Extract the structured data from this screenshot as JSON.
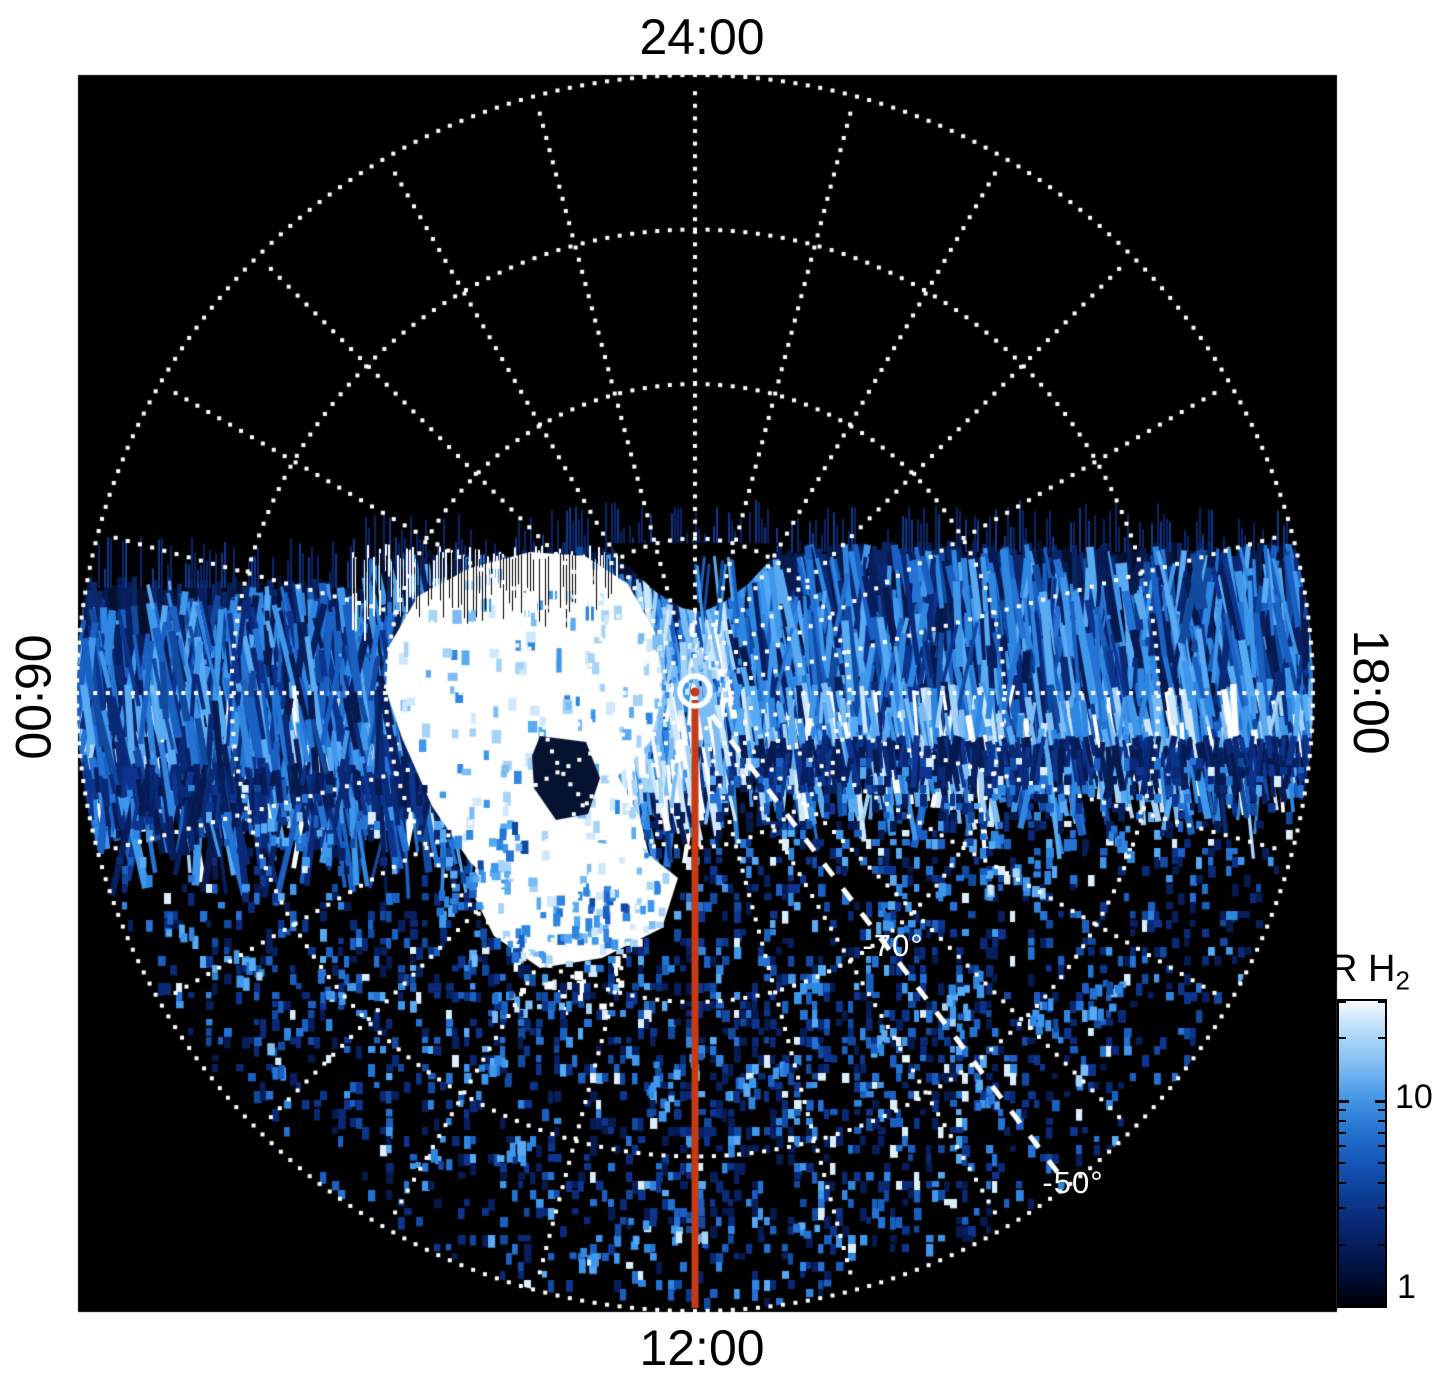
{
  "figure": {
    "description": "Polar projection map of southern auroral H2 emission versus local time and latitude",
    "plot_background": "#000000",
    "page_background": "#ffffff"
  },
  "axis_labels": {
    "top": "24:00",
    "bottom": "12:00",
    "left": "06:00",
    "right": "18:00"
  },
  "latitude_labels": {
    "inner": "-70°",
    "outer": "-50°"
  },
  "colorbar": {
    "title_main": "kR H",
    "title_sub": "2",
    "tick_top_label": "10",
    "tick_bottom_label": "1"
  },
  "colors": {
    "page_bg": "#ffffff",
    "plot_bg": "#000000",
    "grid": "#ffffff",
    "red_line": "#c53b16",
    "label_text": "#000000",
    "latitude_text": "#ffffff"
  },
  "chart_data": {
    "type": "heatmap",
    "projection": "polar, pole at center",
    "quantity": "H2 auroral emission brightness",
    "units": "kR",
    "angular_axis": {
      "quantity": "local time",
      "labels": [
        "24:00",
        "06:00",
        "12:00",
        "18:00"
      ],
      "label_positions": [
        "top",
        "left",
        "bottom",
        "right"
      ],
      "spoke_interval_deg": 15
    },
    "radial_axis": {
      "quantity": "latitude (degrees)",
      "pole_at_center_deg": -90,
      "outer_edge_deg": -50,
      "dotted_rings_deg": [
        -80,
        -70,
        -60,
        -50
      ],
      "dashed_meridian": {
        "local_time": "~14:30 (lower right)",
        "labels": [
          {
            "text": "-70°",
            "on_ring_deg": -70
          },
          {
            "text": "-50°",
            "on_ring_deg": -50
          }
        ]
      }
    },
    "colorbar": {
      "title": "kR H2",
      "scale": "log",
      "range_kR": [
        1,
        30
      ],
      "major_ticks": [
        1,
        10
      ],
      "minor_ticks": [
        2,
        3,
        4,
        5,
        6,
        7,
        8,
        9,
        20,
        30
      ]
    },
    "features": [
      {
        "name": "main auroral patch",
        "appearance": "saturated white blob",
        "local_time": "07:00-10:30",
        "latitude_deg": [
          -78,
          -64
        ],
        "brightness_kR": ">30"
      },
      {
        "name": "secondary bright patch",
        "appearance": "white",
        "local_time": "~09:30",
        "latitude_deg": [
          -68,
          -63
        ]
      },
      {
        "name": "dawn-dusk emission band",
        "appearance": "vertical blue streak band crossing the whole disc through the pole from 06:00 to 18:00",
        "brightness_kR": "3-20"
      },
      {
        "name": "background speckle",
        "region": "dayside half toward 12:00",
        "appearance": "random faint blue noise",
        "brightness_kR": "1-5"
      },
      {
        "name": "no-data nightside region",
        "region": "upper half above band",
        "appearance": "pure black"
      },
      {
        "name": "12:00 meridian marker",
        "appearance": "solid red line from pole to -50 edge"
      },
      {
        "name": "pole marker",
        "appearance": "bold white ring with red dot, small dotted circle around it"
      }
    ]
  }
}
